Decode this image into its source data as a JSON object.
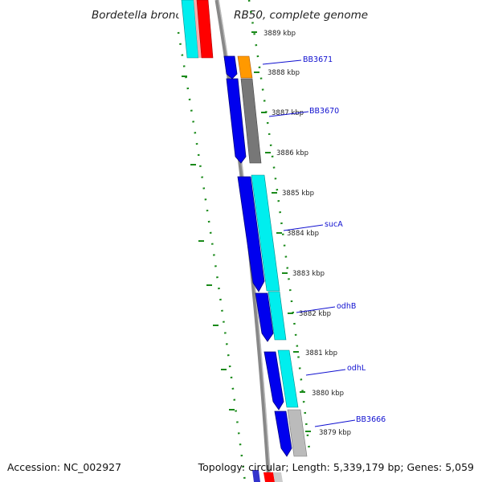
{
  "title": "Bordetella bronchiseptica RB50, complete genome",
  "footer": {
    "accession": "Accession: NC_002927",
    "topology": "Topology: circular; Length: 5,339,179 bp; Genes: 5,059"
  },
  "ticks": [
    "3889 kbp",
    "3888 kbp",
    "3887 kbp",
    "3886 kbp",
    "3885 kbp",
    "3884 kbp",
    "3883 kbp",
    "3882 kbp",
    "3881 kbp",
    "3880 kbp",
    "3879 kbp"
  ],
  "gene_labels": [
    "BB3671",
    "BB3670",
    "sucA",
    "odhB",
    "odhL",
    "BB3666"
  ],
  "colors": {
    "forward_cds": "#0000ee",
    "gene_orange": "#ff9900",
    "gene_dark_gray": "#777777",
    "gene_cyan": "#00eeee",
    "gene_light_gray": "#bbbbbb",
    "gene_red": "#ff0000",
    "ruler_tick": "#1a8a1a",
    "backbone": "#888888",
    "label_line": "#1010d0"
  }
}
